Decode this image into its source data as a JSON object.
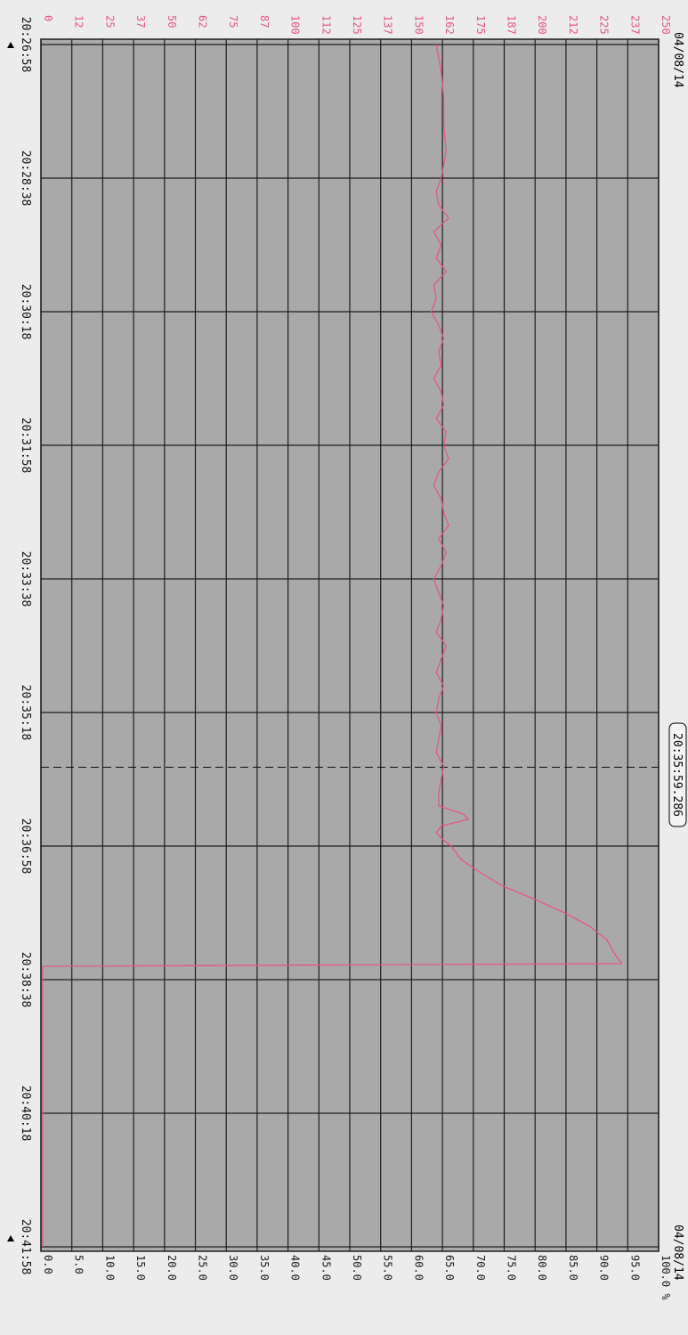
{
  "chart_data": {
    "type": "line",
    "orientation": "rotated-90-clockwise",
    "date_top": "04/08/14",
    "date_bottom": "04/08/14",
    "cursor_time": "20:35:59.286",
    "time_ticks": [
      "20:26:58",
      "20:28:38",
      "20:30:18",
      "20:31:58",
      "20:33:38",
      "20:35:18",
      "20:36:58",
      "20:38:38",
      "20:40:18",
      "20:41:58"
    ],
    "hr_ticks": [
      "0",
      "12",
      "25",
      "37",
      "50",
      "62",
      "75",
      "87",
      "100",
      "112",
      "125",
      "137",
      "150",
      "162",
      "175",
      "187",
      "200",
      "212",
      "225",
      "237",
      "250"
    ],
    "pct_ticks": [
      "0.0",
      "5.0",
      "10.0",
      "15.0",
      "20.0",
      "25.0",
      "30.0",
      "35.0",
      "40.0",
      "45.0",
      "50.0",
      "55.0",
      "60.0",
      "65.0",
      "70.0",
      "75.0",
      "80.0",
      "85.0",
      "90.0",
      "95.0",
      "100.0 %"
    ],
    "xlim": [
      0,
      900
    ],
    "ylim_hr": [
      0,
      250
    ],
    "ylim_pct": [
      0,
      100
    ],
    "grid": true,
    "series": [
      {
        "color": "#e8548c",
        "x_seconds": [
          0,
          20,
          40,
          60,
          80,
          100,
          110,
          120,
          130,
          140,
          150,
          160,
          170,
          180,
          190,
          200,
          210,
          220,
          230,
          240,
          250,
          260,
          270,
          280,
          290,
          300,
          310,
          320,
          330,
          340,
          350,
          360,
          370,
          380,
          390,
          400,
          410,
          420,
          430,
          440,
          450,
          460,
          470,
          480,
          490,
          500,
          510,
          520,
          530,
          540,
          550,
          560,
          570,
          576,
          580,
          585,
          590,
          594,
          600,
          610,
          620,
          630,
          640,
          650,
          660,
          670,
          680,
          688,
          690,
          700,
          720,
          750,
          800,
          850,
          900
        ],
        "hr_values": [
          160,
          162,
          163,
          163,
          164,
          162,
          160,
          161,
          165,
          159,
          162,
          160,
          164,
          159,
          160,
          158,
          161,
          163,
          161,
          162,
          159,
          162,
          163,
          160,
          164,
          163,
          165,
          161,
          159,
          162,
          163,
          165,
          161,
          164,
          162,
          159,
          161,
          163,
          162,
          160,
          164,
          162,
          160,
          163,
          161,
          160,
          162,
          161,
          160,
          163,
          162,
          161,
          161,
          171,
          173,
          162,
          160,
          162,
          166,
          170,
          178,
          187,
          200,
          212,
          222,
          229,
          232,
          235,
          0,
          0,
          0,
          0,
          0,
          0,
          0
        ]
      }
    ]
  }
}
